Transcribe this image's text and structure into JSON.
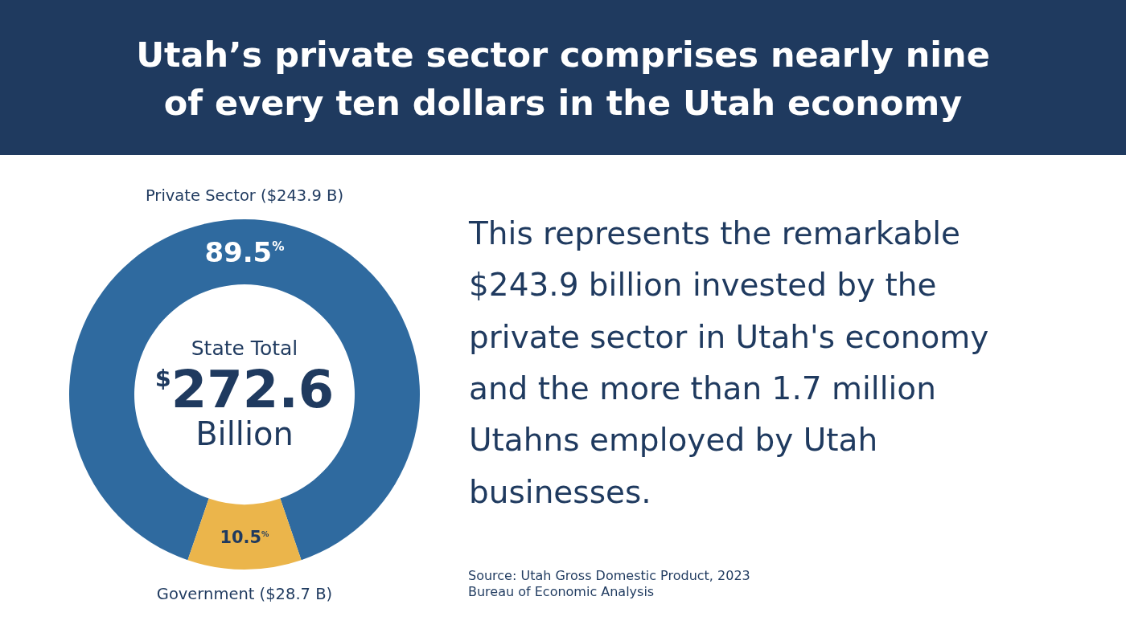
{
  "chart_data": {
    "type": "donut",
    "title": "Utah’s private sector comprises nearly nine of every ten dollars in the Utah economy",
    "categories": [
      "Private Sector ($243.9 B)",
      "Government ($28.7 B)"
    ],
    "values": [
      89.5,
      10.5
    ],
    "colors": [
      "#2f6a9f",
      "#ebb54b"
    ],
    "value_labels": [
      "89.5$^{%}$",
      "10.5$^{%}$"
    ],
    "annotations": [
      "State Total",
      "$^{$}$272.6",
      "Billion",
      "This represents the remarkable $243.9 billion invested by the private sector in Utah's economy and the more than 1.7 million Utahns employed by Utah businesses.",
      "Source: Utah Gross Domestic Product, 2023 Bureau of Economic Analysis"
    ]
  }
}
